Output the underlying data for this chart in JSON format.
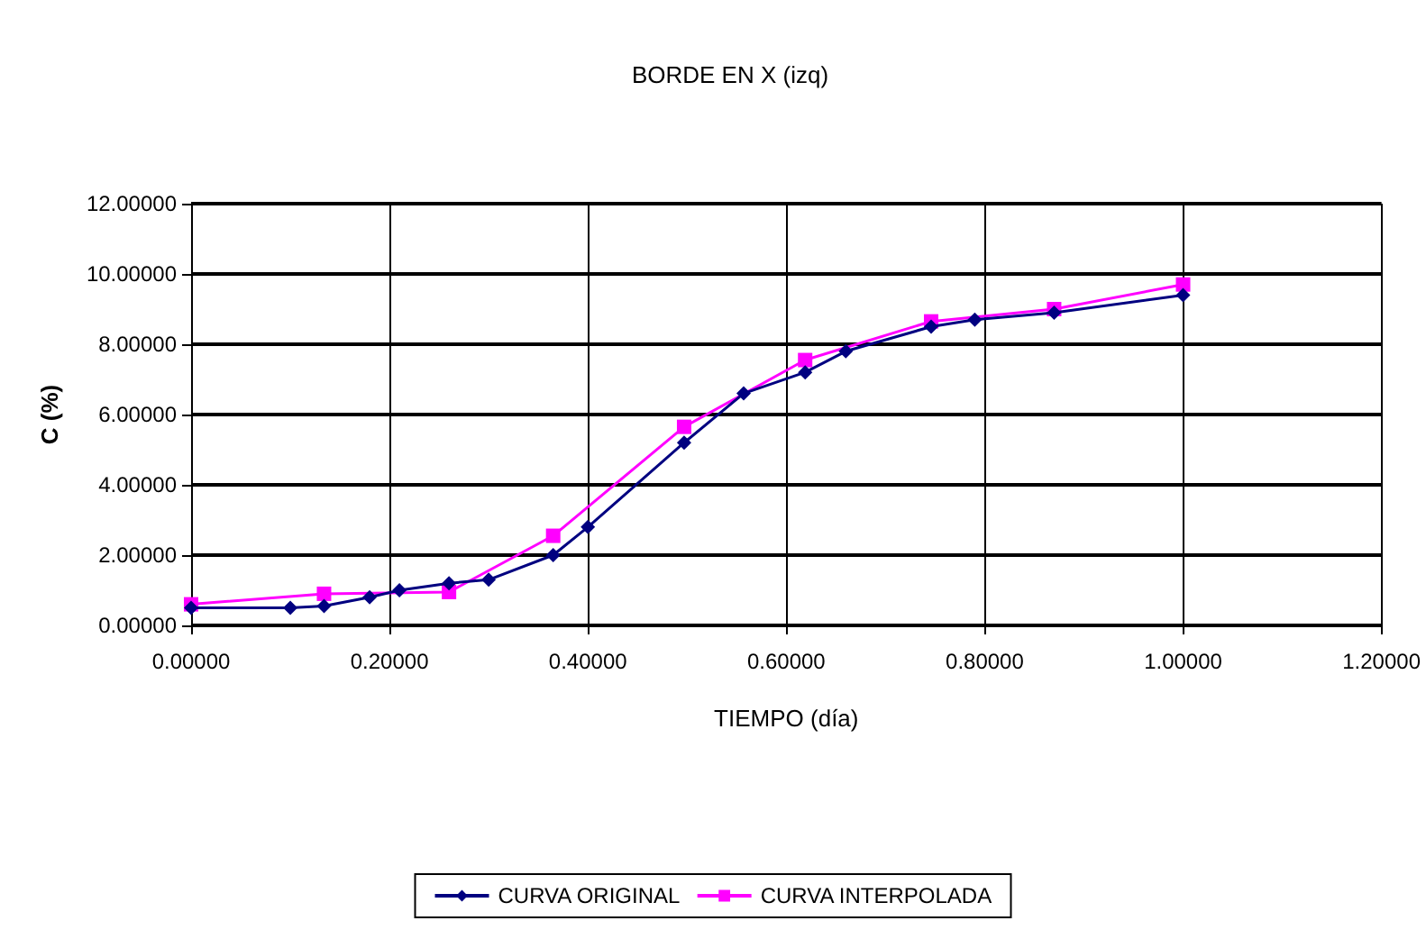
{
  "chart_data": {
    "type": "line",
    "title": "BORDE EN X (izq)",
    "xlabel": "TIEMPO (día)",
    "ylabel": "C (%)",
    "xlim": [
      0,
      1.2
    ],
    "xticks": [
      {
        "value": 0,
        "label": "0.00000"
      },
      {
        "value": 0.2,
        "label": "0.20000"
      },
      {
        "value": 0.4,
        "label": "0.40000"
      },
      {
        "value": 0.6,
        "label": "0.60000"
      },
      {
        "value": 0.8,
        "label": "0.80000"
      },
      {
        "value": 1,
        "label": "1.00000"
      },
      {
        "value": 1.2,
        "label": "1.20000"
      }
    ],
    "ylim": [
      0,
      12
    ],
    "yticks": [
      {
        "value": 0,
        "label": "0.00000"
      },
      {
        "value": 2,
        "label": "2.00000"
      },
      {
        "value": 4,
        "label": "4.00000"
      },
      {
        "value": 6,
        "label": "6.00000"
      },
      {
        "value": 8,
        "label": "8.00000"
      },
      {
        "value": 10,
        "label": "10.00000"
      },
      {
        "value": 12,
        "label": "12.00000"
      }
    ],
    "grid": true,
    "legend": "bottom",
    "series": [
      {
        "name": "CURVA ORIGINAL",
        "color": "#000080",
        "marker": "diamond",
        "x": [
          0,
          0.1,
          0.134,
          0.18,
          0.21,
          0.26,
          0.3,
          0.365,
          0.4,
          0.497,
          0.557,
          0.619,
          0.66,
          0.746,
          0.79,
          0.87,
          1.0
        ],
        "values": [
          0.5,
          0.5,
          0.55,
          0.8,
          1.0,
          1.2,
          1.3,
          2.0,
          2.8,
          5.2,
          6.6,
          7.2,
          7.8,
          8.5,
          8.7,
          8.9,
          9.4
        ]
      },
      {
        "name": "CURVA INTERPOLADA",
        "color": "#ff00ff",
        "marker": "square",
        "x": [
          0,
          0.134,
          0.26,
          0.365,
          0.497,
          0.619,
          0.746,
          0.87,
          1.0
        ],
        "values": [
          0.6,
          0.9,
          0.95,
          2.55,
          5.65,
          7.55,
          8.65,
          9.0,
          9.7
        ]
      }
    ]
  }
}
